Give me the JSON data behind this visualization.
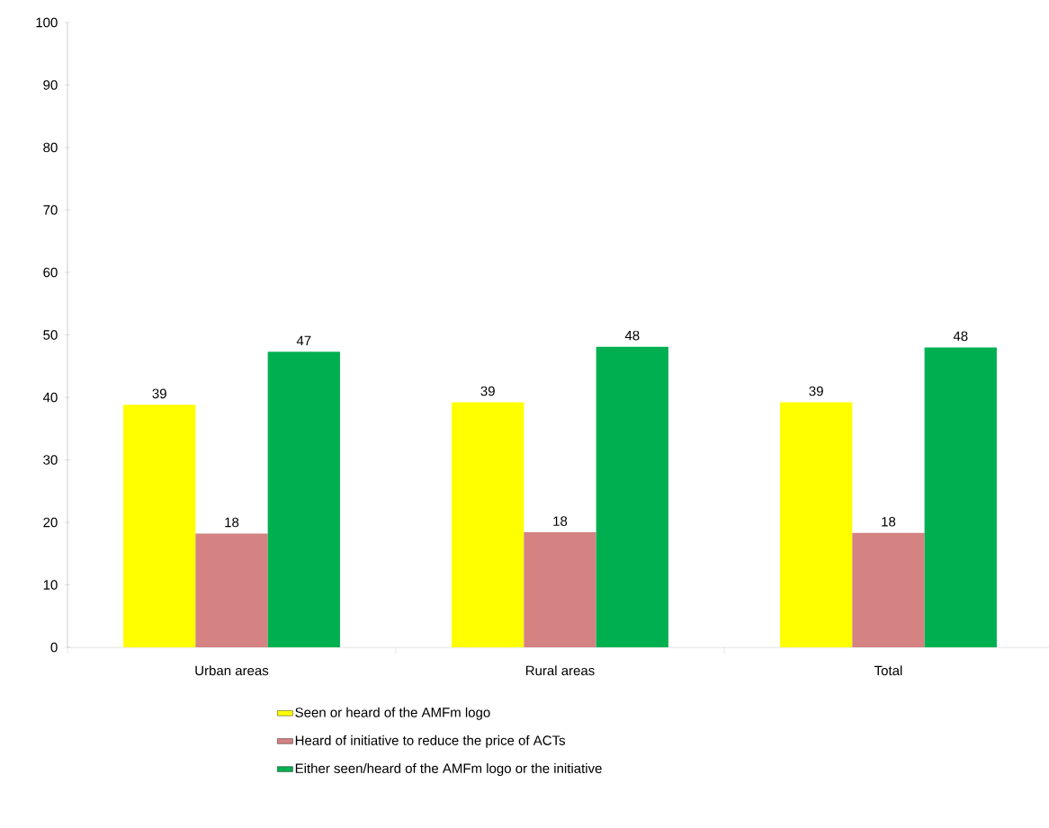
{
  "chart_data": {
    "type": "bar",
    "categories": [
      "Urban areas",
      "Rural areas",
      "Total"
    ],
    "series": [
      {
        "name": "Seen or heard of the AMFm logo",
        "color": "#ffff00",
        "values": [
          38.8,
          39.2,
          39.2
        ],
        "value_labels": [
          "39",
          "39",
          "39"
        ]
      },
      {
        "name": "Heard of initiative to reduce the price of ACTs",
        "color": "#d48282",
        "values": [
          18.2,
          18.4,
          18.3
        ],
        "value_labels": [
          "18",
          "18",
          "18"
        ]
      },
      {
        "name": "Either seen/heard of the AMFm logo or the initiative",
        "color": "#00b050",
        "values": [
          47.3,
          48.1,
          48.0
        ],
        "value_labels": [
          "47",
          "48",
          "48"
        ]
      }
    ],
    "ylim": [
      0,
      100
    ],
    "yticks": [
      0,
      10,
      20,
      30,
      40,
      50,
      60,
      70,
      80,
      90,
      100
    ],
    "grid": false,
    "legend": "bottom"
  }
}
